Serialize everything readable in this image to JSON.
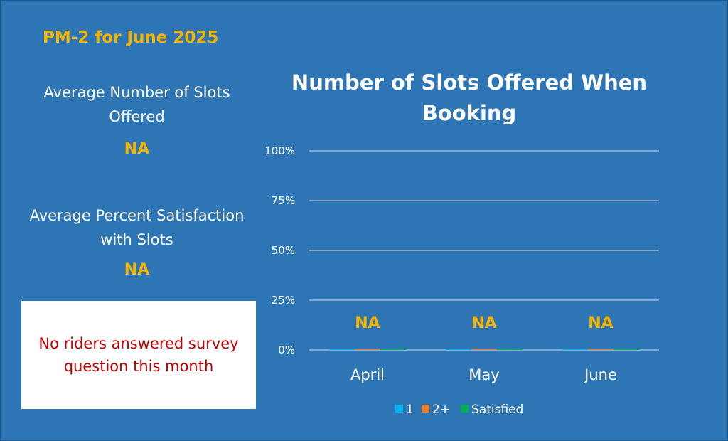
{
  "page_title": "PM-2 for June 2025",
  "stats": {
    "avg_slots_label": "Average Number of Slots Offered",
    "avg_slots_value": "NA",
    "avg_satisfaction_label": "Average Percent Satisfaction with Slots",
    "avg_satisfaction_value": "NA"
  },
  "note": "No riders answered survey question this month",
  "colors": {
    "background": "#2e75b6",
    "accent": "#f4b400",
    "note_text": "#c00000",
    "series_1": "#00b0f0",
    "series_2plus": "#ed7d31",
    "series_satisfied": "#00b050"
  },
  "chart_data": {
    "type": "bar",
    "title": "Number of Slots Offered When Booking",
    "categories": [
      "April",
      "May",
      "June"
    ],
    "series": [
      {
        "name": "1",
        "values": [
          0,
          0,
          0
        ]
      },
      {
        "name": "2+",
        "values": [
          0,
          0,
          0
        ]
      },
      {
        "name": "Satisfied",
        "values": [
          0,
          0,
          0
        ]
      }
    ],
    "data_labels": [
      "NA",
      "NA",
      "NA"
    ],
    "ylim": [
      0,
      100
    ],
    "yticks": [
      "0%",
      "25%",
      "50%",
      "75%",
      "100%"
    ],
    "ytick_values": [
      0,
      25,
      50,
      75,
      100
    ],
    "grid": true,
    "legend": "bottom",
    "xlabel": "",
    "ylabel": ""
  }
}
